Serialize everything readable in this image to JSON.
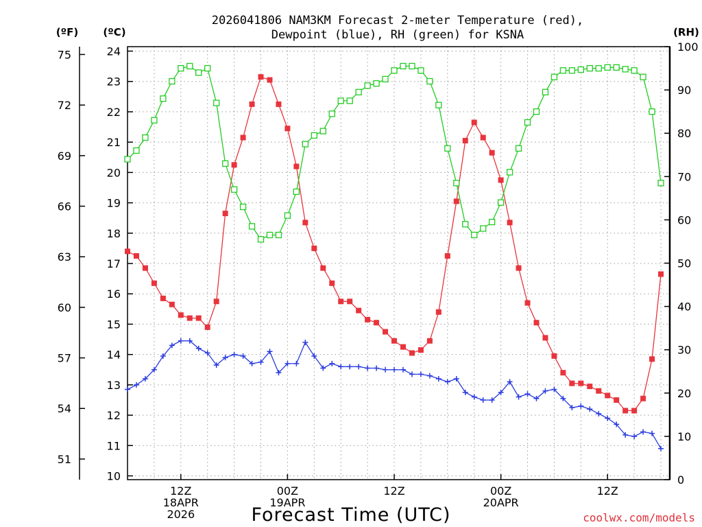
{
  "chart_data": {
    "type": "line",
    "title": "2026041806 NAM3KM Forecast 2-meter Temperature (red),",
    "subtitle": "Dewpoint (blue), RH (green) for KSNA",
    "xlabel": "Forecast Time (UTC)",
    "credit": "coolwx.com/models",
    "units": {
      "fahrenheit": "(ºF)",
      "celsius": "(ºC)",
      "rh": "(RH)"
    },
    "x_range_hours": [
      0,
      61
    ],
    "x_ticks": [
      {
        "hour": 6,
        "lines": [
          "12Z",
          "18APR",
          "2026"
        ]
      },
      {
        "hour": 18,
        "lines": [
          "00Z",
          "19APR"
        ]
      },
      {
        "hour": 30,
        "lines": [
          "12Z"
        ]
      },
      {
        "hour": 42,
        "lines": [
          "00Z",
          "20APR"
        ]
      },
      {
        "hour": 54,
        "lines": [
          "12Z"
        ]
      }
    ],
    "celsius_axis": {
      "range": [
        10,
        24
      ],
      "ticks": [
        "10",
        "11",
        "12",
        "13",
        "14",
        "15",
        "16",
        "17",
        "18",
        "19",
        "20",
        "21",
        "22",
        "23",
        "24"
      ]
    },
    "fahrenheit_axis": {
      "range": [
        50,
        75.2
      ],
      "ticks": [
        "51",
        "54",
        "57",
        "60",
        "63",
        "66",
        "69",
        "72",
        "75"
      ]
    },
    "rh_axis": {
      "range": [
        0,
        100
      ],
      "ticks": [
        "0",
        "10",
        "20",
        "30",
        "40",
        "50",
        "60",
        "70",
        "80",
        "90",
        "100"
      ]
    },
    "series": [
      {
        "name": "Temperature",
        "axis": "celsius",
        "color": "#e8343c",
        "marker": "filled-square",
        "values": [
          17.4,
          17.25,
          16.85,
          16.35,
          15.85,
          15.65,
          15.3,
          15.2,
          15.2,
          14.9,
          15.75,
          18.65,
          20.25,
          21.15,
          22.25,
          23.15,
          23.05,
          22.25,
          21.45,
          20.2,
          18.35,
          17.5,
          16.85,
          16.35,
          15.75,
          15.75,
          15.45,
          15.15,
          15.05,
          14.75,
          14.45,
          14.25,
          14.05,
          14.15,
          14.45,
          15.4,
          17.25,
          19.05,
          21.05,
          21.65,
          21.15,
          20.65,
          19.75,
          18.35,
          16.85,
          15.7,
          15.05,
          14.55,
          13.95,
          13.4,
          13.05,
          13.05,
          12.95,
          12.8,
          12.65,
          12.5,
          12.15,
          12.15,
          12.55,
          13.85,
          16.65
        ]
      },
      {
        "name": "Dewpoint",
        "axis": "celsius",
        "color": "#2a3be0",
        "marker": "plus",
        "values": [
          12.85,
          13.0,
          13.2,
          13.5,
          13.95,
          14.3,
          14.45,
          14.45,
          14.2,
          14.05,
          13.65,
          13.9,
          14.0,
          13.95,
          13.7,
          13.75,
          14.1,
          13.4,
          13.7,
          13.7,
          14.4,
          13.95,
          13.55,
          13.7,
          13.6,
          13.6,
          13.6,
          13.55,
          13.55,
          13.5,
          13.5,
          13.5,
          13.35,
          13.35,
          13.3,
          13.2,
          13.1,
          13.2,
          12.75,
          12.6,
          12.5,
          12.5,
          12.75,
          13.1,
          12.6,
          12.7,
          12.55,
          12.8,
          12.85,
          12.55,
          12.25,
          12.3,
          12.2,
          12.05,
          11.9,
          11.7,
          11.35,
          11.3,
          11.45,
          11.4,
          10.9
        ]
      },
      {
        "name": "RH",
        "axis": "rh",
        "color": "#22cc22",
        "marker": "open-square",
        "values": [
          74,
          76,
          79,
          83,
          88,
          92,
          95,
          95.5,
          94,
          95,
          87,
          73,
          67,
          63,
          58.5,
          55.5,
          56.5,
          56.5,
          61,
          66.5,
          77.5,
          79.5,
          80.5,
          84.5,
          87.5,
          87.5,
          89.5,
          91,
          91.5,
          92.5,
          94.5,
          95.5,
          95.5,
          94.5,
          92,
          86.5,
          76.5,
          68.5,
          59,
          56.5,
          58,
          59.5,
          64,
          71,
          76.5,
          82.5,
          85,
          89.5,
          93,
          94.5,
          94.5,
          94.7,
          95,
          95,
          95.2,
          95.2,
          94.8,
          94.5,
          93,
          85,
          68.5
        ]
      }
    ]
  }
}
